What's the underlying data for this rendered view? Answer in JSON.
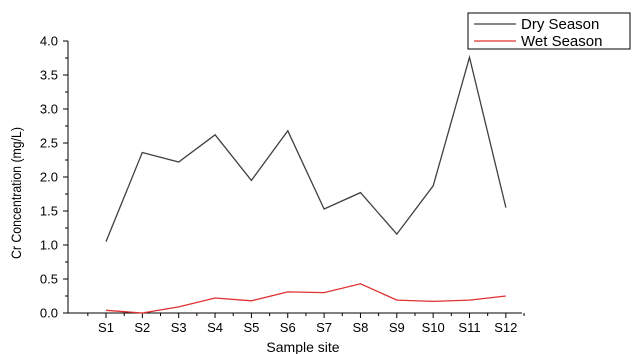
{
  "chart_data": {
    "type": "line",
    "xlabel": "Sample site",
    "ylabel": "Cr Concentration (mg/L)",
    "categories": [
      "S1",
      "S2",
      "S3",
      "S4",
      "S5",
      "S6",
      "S7",
      "S8",
      "S9",
      "S10",
      "S11",
      "S12"
    ],
    "ylim": [
      0,
      4.0
    ],
    "yticks": [
      "0.0",
      "0.5",
      "1.0",
      "1.5",
      "2.0",
      "2.5",
      "3.0",
      "3.5",
      "4.0"
    ],
    "grid": false,
    "legend_position": "top-right",
    "series": [
      {
        "name": "Dry Season",
        "color": "#404040",
        "values": [
          1.05,
          2.36,
          2.22,
          2.62,
          1.95,
          2.68,
          1.53,
          1.77,
          1.16,
          1.87,
          3.76,
          1.55
        ]
      },
      {
        "name": "Wet Season",
        "color": "#e03030",
        "values": [
          0.04,
          0.0,
          0.09,
          0.22,
          0.18,
          0.31,
          0.3,
          0.43,
          0.19,
          0.17,
          0.19,
          0.25
        ]
      }
    ]
  }
}
